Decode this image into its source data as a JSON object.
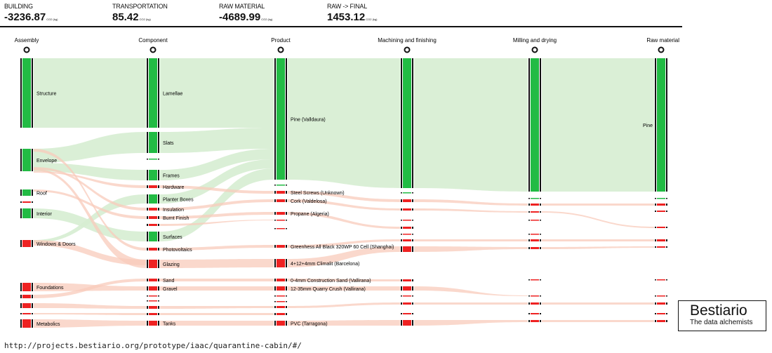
{
  "stats": [
    {
      "label": "BUILDING",
      "value": "-3236.87",
      "unit": "CO2 (kg)"
    },
    {
      "label": "TRANSPORTATION",
      "value": "85.42",
      "unit": "CO2 (kg)"
    },
    {
      "label": "RAW MATERIAL",
      "value": "-4689.99",
      "unit": "CO2 (kg)"
    },
    {
      "label": "RAW -> FINAL",
      "value": "1453.12",
      "unit": "CO2 (kg)"
    }
  ],
  "columns": [
    "Assembly",
    "Component",
    "Product",
    "Machining and finishing",
    "Milling and drying",
    "Raw material"
  ],
  "node_labels": {
    "assembly": [
      "Structure",
      "Envelope",
      "Roof",
      "",
      "Interior",
      "Windows & Doors",
      "Foundations",
      "",
      "",
      "",
      "Metabolics"
    ],
    "component": [
      "Lamellae",
      "Slats",
      "",
      "Frames",
      "Hardware",
      "Planter Boxes",
      "Insulation",
      "Burnt Finish",
      "",
      "Surfaces",
      "Photovoltaics",
      "Glazing",
      "Sand",
      "Gravel",
      "",
      "",
      "",
      "",
      "Tanks"
    ],
    "product": [
      "Pine (Valldaura)",
      "",
      "Steel Screws (Unknown)",
      "Cork (Valdelosa)",
      "Propane (Algeria)",
      "",
      "",
      "Greenhess All Black 320WP 60 Cell (Shanghai)",
      "4+12+4mm Climalit (Barcelona)",
      "0-4mm Construction Sand (Vallirana)",
      "12-35mm Quarry Crush (Vallirana)",
      "",
      "",
      "",
      "",
      "PVC (Tarragona)"
    ],
    "raw": [
      "Pine"
    ]
  },
  "colors": {
    "positive": "#22bb44",
    "negative": "#ee2222",
    "positive_flow": "#d6edd2",
    "negative_flow": "#f8cbbb"
  },
  "logo": {
    "title": "Bestiario",
    "subtitle": "The data alchemists"
  },
  "url": "http://projects.bestiario.org/prototype/iaac/quarantine-cabin/#/"
}
